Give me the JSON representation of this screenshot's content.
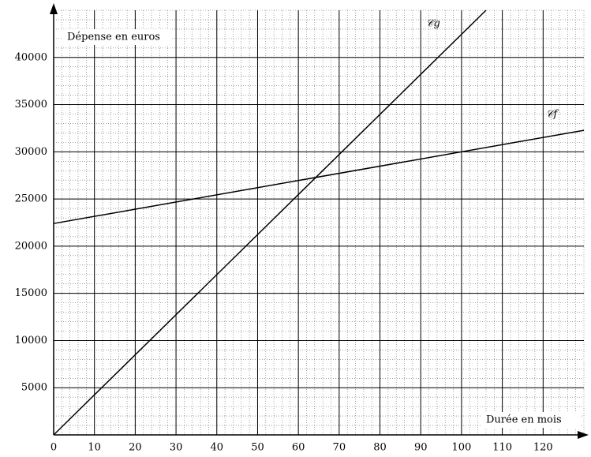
{
  "chart_data": {
    "type": "line",
    "x_label": "Durée en mois",
    "y_label": "Dépense en euros",
    "series": [
      {
        "name": "𝒞g",
        "color": "#000000",
        "x": [
          0,
          106
        ],
        "values": [
          0,
          45000
        ]
      },
      {
        "name": "𝒞f",
        "color": "#000000",
        "x": [
          0,
          130
        ],
        "values": [
          22400,
          32280
        ]
      }
    ],
    "xlim": [
      0,
      130
    ],
    "ylim": [
      0,
      45000
    ],
    "xticks": [
      0,
      10,
      20,
      30,
      40,
      50,
      60,
      70,
      80,
      90,
      100,
      110,
      120
    ],
    "yticks": [
      5000,
      10000,
      15000,
      20000,
      25000,
      30000,
      35000,
      40000
    ],
    "grid": true
  }
}
